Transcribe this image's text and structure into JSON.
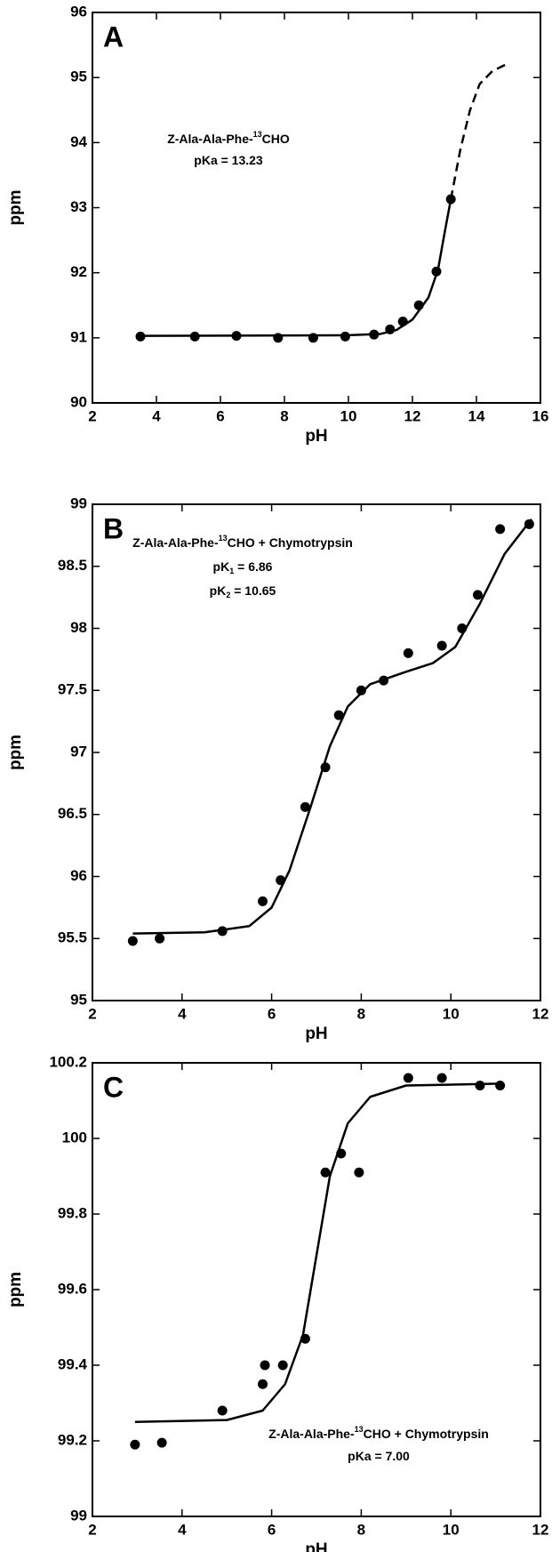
{
  "chart_data": [
    {
      "type": "scatter",
      "label": "A",
      "xlabel": "pH",
      "ylabel": "ppm",
      "xlim": [
        2,
        16
      ],
      "ylim": [
        90,
        96
      ],
      "xticks": [
        2,
        4,
        6,
        8,
        10,
        12,
        14,
        16
      ],
      "yticks": [
        90,
        91,
        92,
        93,
        94,
        95,
        96
      ],
      "annotation": [
        [
          {
            "text": "Z-Ala-Ala-Phe-"
          },
          {
            "sup": "13"
          },
          {
            "text": "CHO"
          }
        ],
        [
          {
            "text": "pKa = 13.23"
          }
        ]
      ],
      "series": [
        {
          "style": "markers",
          "color": "#000000",
          "x": [
            3.5,
            5.2,
            6.5,
            7.8,
            8.9,
            9.9,
            10.8,
            11.3,
            11.7,
            12.2,
            12.75,
            13.2
          ],
          "values": [
            91.02,
            91.02,
            91.03,
            91.0,
            91.0,
            91.02,
            91.05,
            91.13,
            91.25,
            91.5,
            92.02,
            93.13
          ]
        },
        {
          "style": "line",
          "color": "#000000",
          "x": [
            3.5,
            10,
            11,
            11.5,
            12,
            12.5,
            12.8,
            13,
            13.2
          ],
          "values": [
            91.03,
            91.04,
            91.06,
            91.12,
            91.28,
            91.62,
            92.05,
            92.6,
            93.13
          ]
        },
        {
          "style": "dashed",
          "color": "#000000",
          "x": [
            13.2,
            13.5,
            13.8,
            14.1,
            14.5,
            15
          ],
          "values": [
            93.13,
            93.9,
            94.5,
            94.9,
            95.1,
            95.22
          ]
        }
      ]
    },
    {
      "type": "scatter",
      "label": "B",
      "xlabel": "pH",
      "ylabel": "ppm",
      "xlim": [
        2,
        12
      ],
      "ylim": [
        95,
        99
      ],
      "xticks": [
        2,
        4,
        6,
        8,
        10,
        12
      ],
      "yticks": [
        95,
        95.5,
        96,
        96.5,
        97,
        97.5,
        98,
        98.5,
        99
      ],
      "annotation": [
        [
          {
            "text": "Z-Ala-Ala-Phe-"
          },
          {
            "sup": "13"
          },
          {
            "text": "CHO + Chymotrypsin"
          }
        ],
        [
          {
            "text": "pK"
          },
          {
            "sub": "1"
          },
          {
            "text": " = 6.86"
          }
        ],
        [
          {
            "text": "pK"
          },
          {
            "sub": "2"
          },
          {
            "text": " = 10.65"
          }
        ]
      ],
      "series": [
        {
          "style": "markers",
          "color": "#000000",
          "x": [
            2.9,
            3.5,
            4.9,
            5.8,
            6.2,
            6.75,
            7.2,
            7.5,
            8.0,
            8.5,
            9.05,
            9.8,
            10.25,
            10.6,
            11.1,
            11.75
          ],
          "values": [
            95.48,
            95.5,
            95.56,
            95.8,
            95.97,
            96.56,
            96.88,
            97.3,
            97.5,
            97.58,
            97.8,
            97.86,
            98.0,
            98.27,
            98.8,
            98.84
          ]
        },
        {
          "style": "line",
          "color": "#000000",
          "x": [
            2.9,
            4.5,
            5.5,
            6.0,
            6.4,
            6.86,
            7.3,
            7.7,
            8.2,
            9,
            9.6,
            10.1,
            10.65,
            11.2,
            11.8
          ],
          "values": [
            95.54,
            95.55,
            95.6,
            95.75,
            96.05,
            96.55,
            97.05,
            97.37,
            97.55,
            97.65,
            97.72,
            97.85,
            98.2,
            98.6,
            98.88
          ]
        }
      ]
    },
    {
      "type": "scatter",
      "label": "C",
      "xlabel": "pH",
      "ylabel": "ppm",
      "xlim": [
        2,
        12
      ],
      "ylim": [
        99,
        100.2
      ],
      "xticks": [
        2,
        4,
        6,
        8,
        10,
        12
      ],
      "yticks": [
        99,
        99.2,
        99.4,
        99.6,
        99.8,
        100,
        100.2
      ],
      "annotation": [
        [
          {
            "text": "Z-Ala-Ala-Phe-"
          },
          {
            "sup": "13"
          },
          {
            "text": "CHO + Chymotrypsin"
          }
        ],
        [
          {
            "text": "pKa = 7.00"
          }
        ]
      ],
      "series": [
        {
          "style": "markers",
          "color": "#000000",
          "x": [
            2.95,
            3.55,
            4.9,
            5.8,
            5.85,
            6.25,
            6.75,
            7.2,
            7.55,
            7.95,
            9.05,
            9.8,
            10.65,
            11.1
          ],
          "values": [
            99.19,
            99.195,
            99.28,
            99.35,
            99.4,
            99.4,
            99.47,
            99.91,
            99.96,
            99.91,
            100.16,
            100.16,
            100.14,
            100.14
          ]
        },
        {
          "style": "line",
          "color": "#000000",
          "x": [
            2.95,
            5,
            5.8,
            6.3,
            6.7,
            7.0,
            7.3,
            7.7,
            8.2,
            9,
            11.1
          ],
          "values": [
            99.25,
            99.255,
            99.28,
            99.35,
            99.48,
            99.69,
            99.9,
            100.04,
            100.11,
            100.14,
            100.145
          ]
        }
      ]
    }
  ]
}
